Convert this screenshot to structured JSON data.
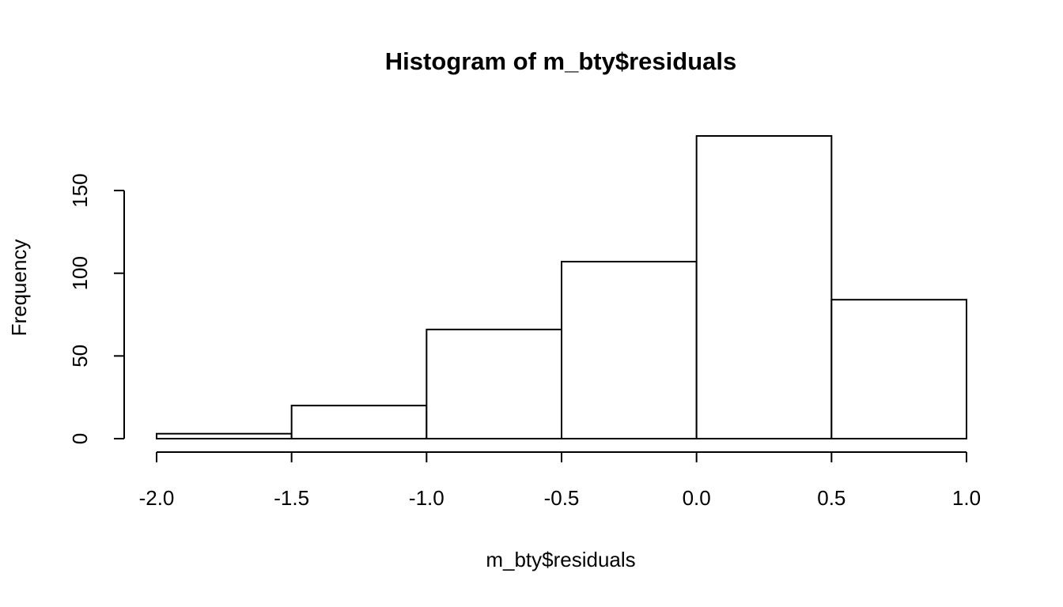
{
  "chart_data": {
    "type": "histogram",
    "title": "Histogram of m_bty$residuals",
    "x_label": "m_bty$residuals",
    "y_label": "Frequency",
    "bins": [
      -2,
      -1.5,
      -1,
      -0.5,
      0,
      0.5,
      1
    ],
    "values": [
      3,
      20,
      66,
      107,
      183,
      84
    ],
    "color": "#ffffff",
    "edge_color": "#000000",
    "xlim": [
      -2,
      1
    ],
    "xticks": [
      {
        "value": -2,
        "label": "-2.0"
      },
      -1.5,
      {
        "value": -1,
        "label": "-1.0"
      },
      -0.5,
      {
        "value": 0,
        "label": "0.0"
      },
      0.5,
      {
        "value": 1,
        "label": "1.0"
      }
    ],
    "ylim": [
      0,
      183
    ],
    "yticks": [
      0,
      50,
      100,
      150
    ],
    "grid": false
  }
}
